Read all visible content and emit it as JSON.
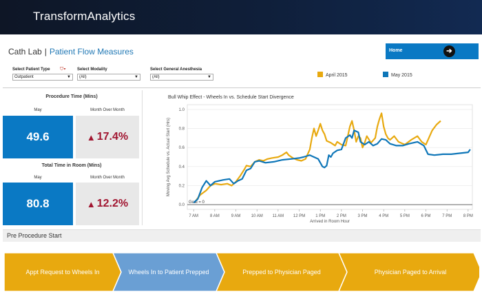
{
  "app": {
    "brand": "TransformAnalytics"
  },
  "breadcrumb": {
    "parent": "Cath Lab",
    "separator": "|",
    "current": "Patient Flow Measures"
  },
  "home": {
    "label": "Home",
    "arrow": "➔"
  },
  "filters": [
    {
      "label": "Select Patient Type",
      "value": "Outpatient",
      "has_filter_icon": true
    },
    {
      "label": "Select Modality",
      "value": "(All)"
    },
    {
      "label": "Select General Anesthesia",
      "value": "(All)"
    }
  ],
  "legend": [
    {
      "name": "April 2015",
      "color": "#e8a90f"
    },
    {
      "name": "May 2015",
      "color": "#0e76b8"
    }
  ],
  "procedure_time": {
    "title": "Procedure Time (Mins)",
    "left_sub": "May",
    "right_sub": "Month Over Month",
    "value": "49.6",
    "change": "17.4%"
  },
  "room_time": {
    "title": "Total Time in Room (Mins)",
    "left_sub": "May",
    "right_sub": "Month Over Month",
    "value": "80.8",
    "change": "12.2%"
  },
  "chart_data": {
    "type": "line",
    "title": "Bull Whip Effect - Wheels In vs. Schedule Start Divergence",
    "xlabel": "Arrived in Room Hour",
    "ylabel": "Moving Avg Schedule vs. Actual Start (Hrs)",
    "x_ticks": [
      "7 AM",
      "8 AM",
      "9 AM",
      "10 AM",
      "11 AM",
      "12 PM",
      "1 PM",
      "2 PM",
      "3 PM",
      "4 PM",
      "5 PM",
      "6 PM",
      "7 PM",
      "8 PM"
    ],
    "xlim": [
      6.7,
      20.2
    ],
    "ylim": [
      -0.05,
      1.05
    ],
    "y_ticks": [
      "0.0",
      "0.2",
      "0.4",
      "0.6",
      "0.8",
      "1.0"
    ],
    "annotation": "Goal = 0",
    "goal_value": 0,
    "series": [
      {
        "name": "April 2015",
        "color": "#e8a90f",
        "points": [
          [
            7.1,
            0.04
          ],
          [
            7.3,
            0.1
          ],
          [
            7.6,
            0.15
          ],
          [
            7.8,
            0.2
          ],
          [
            8.0,
            0.22
          ],
          [
            8.3,
            0.21
          ],
          [
            8.6,
            0.22
          ],
          [
            8.8,
            0.2
          ],
          [
            9.0,
            0.24
          ],
          [
            9.2,
            0.3
          ],
          [
            9.4,
            0.37
          ],
          [
            9.5,
            0.41
          ],
          [
            9.7,
            0.4
          ],
          [
            9.9,
            0.45
          ],
          [
            10.1,
            0.47
          ],
          [
            10.3,
            0.46
          ],
          [
            10.5,
            0.48
          ],
          [
            10.7,
            0.49
          ],
          [
            11.0,
            0.5
          ],
          [
            11.2,
            0.52
          ],
          [
            11.4,
            0.55
          ],
          [
            11.5,
            0.52
          ],
          [
            11.7,
            0.49
          ],
          [
            11.9,
            0.47
          ],
          [
            12.1,
            0.46
          ],
          [
            12.3,
            0.48
          ],
          [
            12.5,
            0.58
          ],
          [
            12.6,
            0.7
          ],
          [
            12.7,
            0.8
          ],
          [
            12.8,
            0.72
          ],
          [
            12.9,
            0.78
          ],
          [
            13.0,
            0.85
          ],
          [
            13.1,
            0.78
          ],
          [
            13.2,
            0.74
          ],
          [
            13.3,
            0.67
          ],
          [
            13.5,
            0.65
          ],
          [
            13.7,
            0.62
          ],
          [
            13.8,
            0.66
          ],
          [
            14.0,
            0.63
          ],
          [
            14.2,
            0.62
          ],
          [
            14.3,
            0.72
          ],
          [
            14.4,
            0.82
          ],
          [
            14.5,
            0.88
          ],
          [
            14.6,
            0.78
          ],
          [
            14.7,
            0.66
          ],
          [
            14.8,
            0.72
          ],
          [
            14.9,
            0.7
          ],
          [
            15.0,
            0.6
          ],
          [
            15.1,
            0.65
          ],
          [
            15.2,
            0.72
          ],
          [
            15.4,
            0.65
          ],
          [
            15.6,
            0.7
          ],
          [
            15.7,
            0.82
          ],
          [
            15.8,
            0.9
          ],
          [
            15.9,
            0.96
          ],
          [
            16.0,
            0.82
          ],
          [
            16.1,
            0.74
          ],
          [
            16.2,
            0.7
          ],
          [
            16.3,
            0.68
          ],
          [
            16.5,
            0.72
          ],
          [
            16.7,
            0.66
          ],
          [
            17.0,
            0.63
          ],
          [
            17.3,
            0.68
          ],
          [
            17.6,
            0.72
          ],
          [
            17.8,
            0.66
          ],
          [
            18.0,
            0.63
          ],
          [
            18.1,
            0.68
          ],
          [
            18.3,
            0.78
          ],
          [
            18.5,
            0.84
          ],
          [
            18.7,
            0.88
          ]
        ]
      },
      {
        "name": "May 2015",
        "color": "#0e76b8",
        "points": [
          [
            7.0,
            0.02
          ],
          [
            7.2,
            0.06
          ],
          [
            7.4,
            0.18
          ],
          [
            7.6,
            0.25
          ],
          [
            7.8,
            0.2
          ],
          [
            8.0,
            0.24
          ],
          [
            8.4,
            0.26
          ],
          [
            8.7,
            0.27
          ],
          [
            8.9,
            0.22
          ],
          [
            9.1,
            0.25
          ],
          [
            9.3,
            0.27
          ],
          [
            9.5,
            0.36
          ],
          [
            9.7,
            0.38
          ],
          [
            9.9,
            0.45
          ],
          [
            10.1,
            0.46
          ],
          [
            10.4,
            0.44
          ],
          [
            10.8,
            0.45
          ],
          [
            11.2,
            0.47
          ],
          [
            11.6,
            0.48
          ],
          [
            12.0,
            0.49
          ],
          [
            12.2,
            0.5
          ],
          [
            12.5,
            0.52
          ],
          [
            12.7,
            0.5
          ],
          [
            12.9,
            0.48
          ],
          [
            13.0,
            0.44
          ],
          [
            13.1,
            0.4
          ],
          [
            13.2,
            0.39
          ],
          [
            13.3,
            0.41
          ],
          [
            13.4,
            0.52
          ],
          [
            13.5,
            0.5
          ],
          [
            13.6,
            0.54
          ],
          [
            13.8,
            0.57
          ],
          [
            14.0,
            0.58
          ],
          [
            14.2,
            0.7
          ],
          [
            14.4,
            0.73
          ],
          [
            14.5,
            0.7
          ],
          [
            14.6,
            0.78
          ],
          [
            14.8,
            0.76
          ],
          [
            14.9,
            0.66
          ],
          [
            15.1,
            0.63
          ],
          [
            15.3,
            0.66
          ],
          [
            15.5,
            0.62
          ],
          [
            15.7,
            0.64
          ],
          [
            15.9,
            0.69
          ],
          [
            16.1,
            0.68
          ],
          [
            16.3,
            0.64
          ],
          [
            16.6,
            0.62
          ],
          [
            16.9,
            0.62
          ],
          [
            17.2,
            0.64
          ],
          [
            17.6,
            0.66
          ],
          [
            17.9,
            0.62
          ],
          [
            18.1,
            0.53
          ],
          [
            18.4,
            0.52
          ],
          [
            18.8,
            0.53
          ],
          [
            19.2,
            0.53
          ],
          [
            19.6,
            0.54
          ],
          [
            20.0,
            0.55
          ],
          [
            20.1,
            0.58
          ]
        ]
      }
    ]
  },
  "pre_procedure": {
    "title": "Pre Procedure Start",
    "steps": [
      {
        "label": "Appt Request to Wheels In",
        "color": "#e8a90f"
      },
      {
        "label": "Wheels In to Patient Prepped",
        "color": "#6a9fd4"
      },
      {
        "label": "Prepped to Physician Paged",
        "color": "#e8a90f"
      },
      {
        "label": "Physician Paged to Arrival",
        "color": "#e8a90f"
      }
    ]
  }
}
